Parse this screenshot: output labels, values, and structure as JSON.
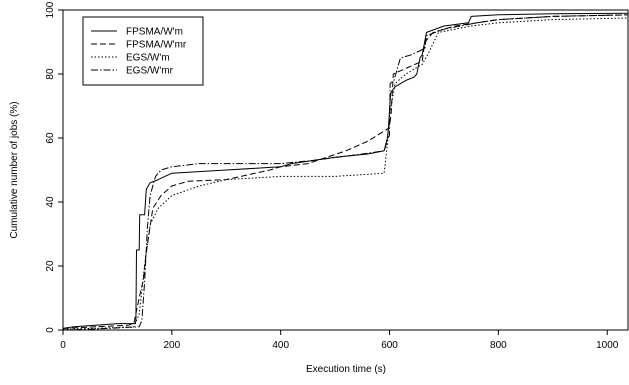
{
  "chart_data": {
    "type": "line",
    "title": "",
    "xlabel": "Execution time (s)",
    "ylabel": "Cumulative number of jobs (%)",
    "xlim": [
      0,
      1040
    ],
    "ylim": [
      0,
      100
    ],
    "xticks": [
      0,
      200,
      400,
      600,
      800,
      1000
    ],
    "yticks": [
      0,
      20,
      40,
      60,
      80,
      100
    ],
    "grid": false,
    "legend_position": "top-left",
    "series": [
      {
        "name": "FPSMA/W'm",
        "dash": "solid",
        "points": [
          [
            0,
            0.5
          ],
          [
            20,
            1
          ],
          [
            60,
            1.5
          ],
          [
            100,
            2
          ],
          [
            133,
            2
          ],
          [
            134,
            3
          ],
          [
            135,
            25
          ],
          [
            140,
            25
          ],
          [
            141,
            36
          ],
          [
            150,
            36
          ],
          [
            153,
            44
          ],
          [
            160,
            46
          ],
          [
            175,
            47
          ],
          [
            200,
            49
          ],
          [
            300,
            50
          ],
          [
            400,
            51
          ],
          [
            420,
            52
          ],
          [
            500,
            54
          ],
          [
            560,
            55
          ],
          [
            590,
            56
          ],
          [
            596,
            60
          ],
          [
            598,
            63
          ],
          [
            602,
            74
          ],
          [
            610,
            76
          ],
          [
            630,
            78
          ],
          [
            645,
            79
          ],
          [
            650,
            80
          ],
          [
            656,
            85
          ],
          [
            660,
            86
          ],
          [
            668,
            93
          ],
          [
            700,
            95
          ],
          [
            745,
            96
          ],
          [
            750,
            98
          ],
          [
            800,
            98.5
          ],
          [
            900,
            98.8
          ],
          [
            1040,
            99
          ]
        ]
      },
      {
        "name": "FPSMA/W'mr",
        "dash": "6,3",
        "points": [
          [
            0,
            0.5
          ],
          [
            60,
            1
          ],
          [
            120,
            1.5
          ],
          [
            130,
            2
          ],
          [
            140,
            10
          ],
          [
            148,
            16
          ],
          [
            152,
            23
          ],
          [
            158,
            30
          ],
          [
            165,
            38
          ],
          [
            180,
            42
          ],
          [
            200,
            45
          ],
          [
            230,
            46.5
          ],
          [
            300,
            47
          ],
          [
            380,
            50
          ],
          [
            400,
            51
          ],
          [
            450,
            52
          ],
          [
            520,
            56
          ],
          [
            560,
            59
          ],
          [
            598,
            63
          ],
          [
            601,
            65
          ],
          [
            603,
            68
          ],
          [
            607,
            80
          ],
          [
            620,
            81
          ],
          [
            660,
            84
          ],
          [
            665,
            90
          ],
          [
            680,
            93
          ],
          [
            720,
            95
          ],
          [
            800,
            97
          ],
          [
            900,
            98
          ],
          [
            1040,
            98.5
          ]
        ]
      },
      {
        "name": "EGS/W'm",
        "dash": "1.5,2",
        "points": [
          [
            0,
            0.3
          ],
          [
            60,
            0.5
          ],
          [
            130,
            1
          ],
          [
            140,
            5
          ],
          [
            150,
            20
          ],
          [
            160,
            33
          ],
          [
            175,
            38
          ],
          [
            200,
            42
          ],
          [
            250,
            45
          ],
          [
            300,
            47
          ],
          [
            400,
            48
          ],
          [
            500,
            48
          ],
          [
            590,
            49
          ],
          [
            596,
            58
          ],
          [
            600,
            67
          ],
          [
            610,
            77
          ],
          [
            630,
            80
          ],
          [
            660,
            83
          ],
          [
            670,
            86
          ],
          [
            690,
            93
          ],
          [
            750,
            95
          ],
          [
            800,
            96
          ],
          [
            900,
            97
          ],
          [
            1040,
            97.5
          ]
        ]
      },
      {
        "name": "EGS/W'mr",
        "dash": "7,2,1.5,2",
        "points": [
          [
            0,
            0
          ],
          [
            60,
            0.3
          ],
          [
            140,
            1
          ],
          [
            145,
            3
          ],
          [
            150,
            15
          ],
          [
            155,
            32
          ],
          [
            160,
            42
          ],
          [
            170,
            48
          ],
          [
            180,
            50
          ],
          [
            200,
            51
          ],
          [
            250,
            52
          ],
          [
            400,
            52
          ],
          [
            460,
            53
          ],
          [
            550,
            55
          ],
          [
            590,
            56
          ],
          [
            600,
            61
          ],
          [
            601,
            77
          ],
          [
            608,
            78
          ],
          [
            620,
            85
          ],
          [
            640,
            86
          ],
          [
            665,
            88
          ],
          [
            668,
            92
          ],
          [
            700,
            94
          ],
          [
            760,
            96
          ],
          [
            800,
            97
          ],
          [
            900,
            98
          ],
          [
            1040,
            98.5
          ]
        ]
      }
    ]
  }
}
